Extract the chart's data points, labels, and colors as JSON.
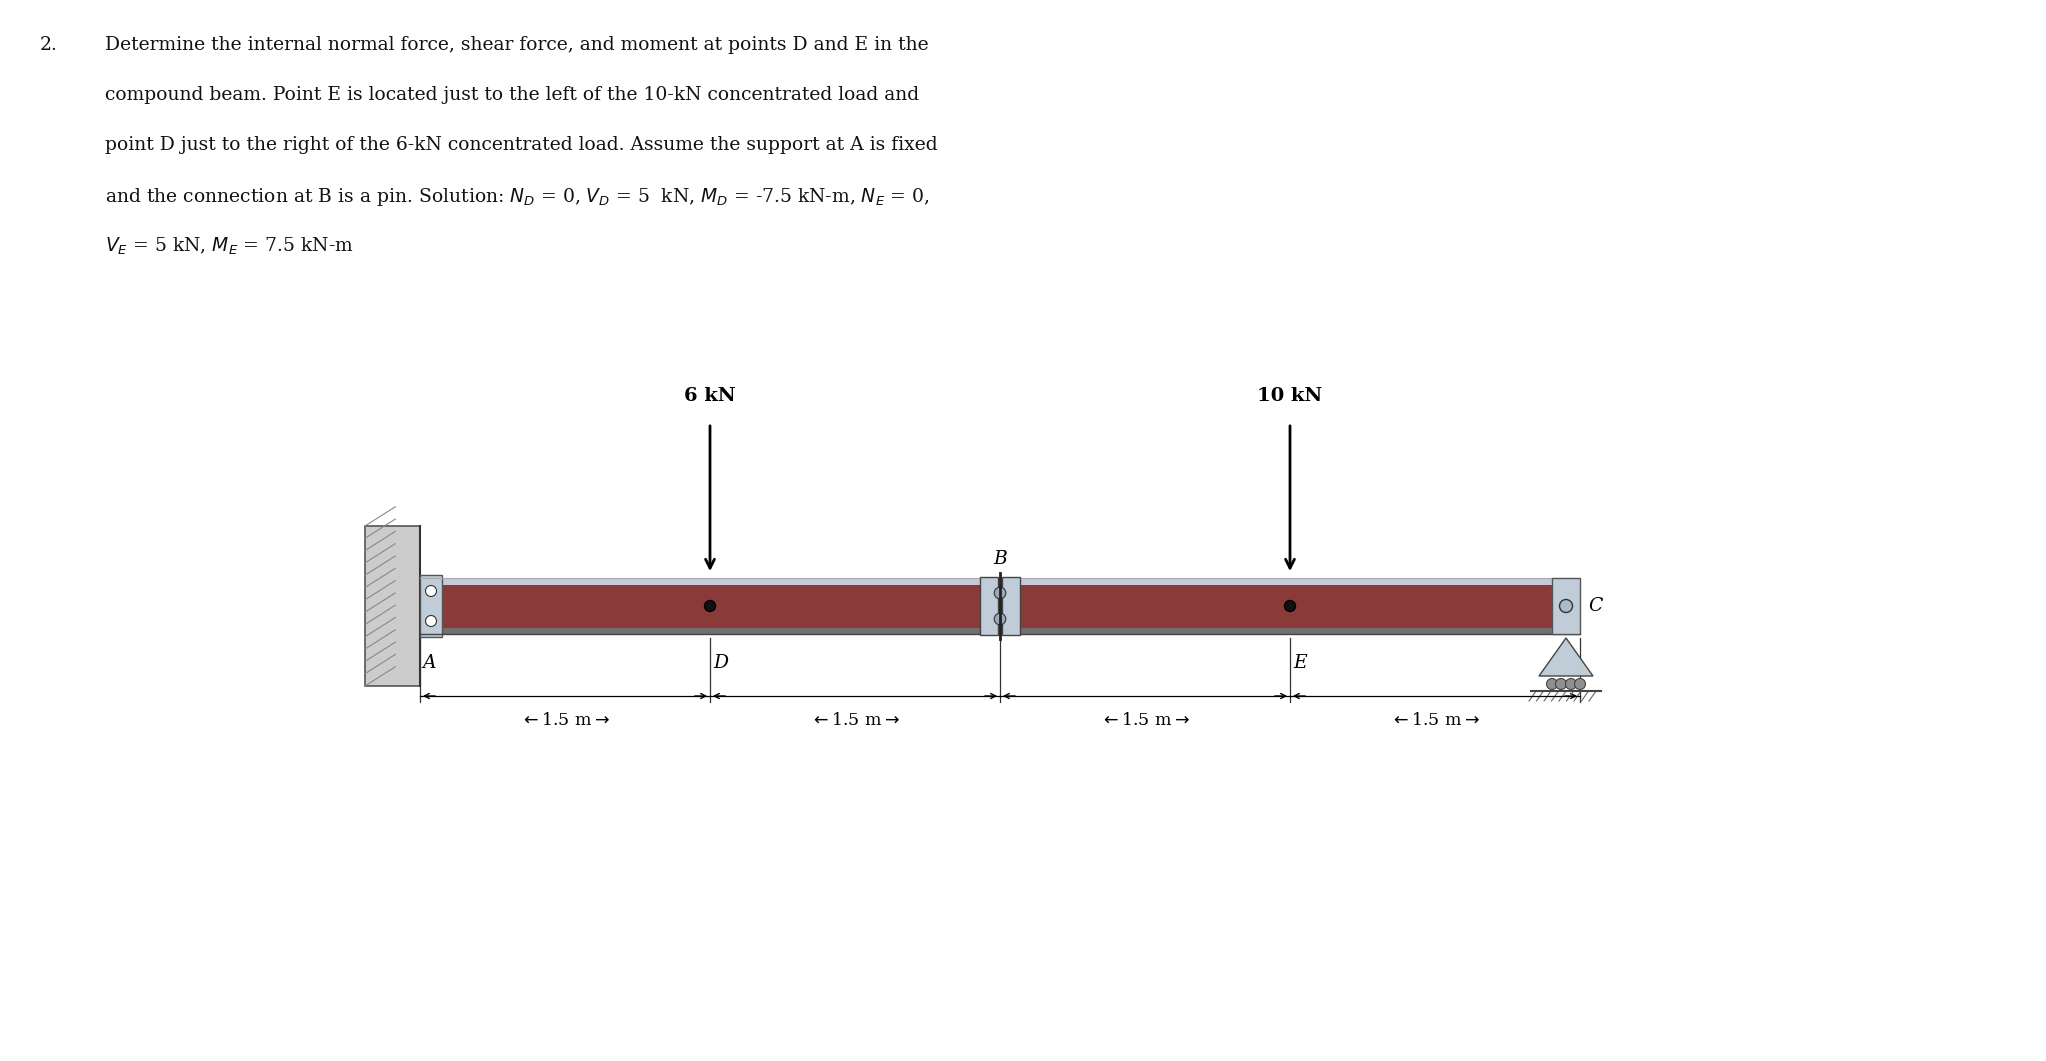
{
  "load1_label": "6 kN",
  "load2_label": "10 kN",
  "label_A": "A",
  "label_B": "B",
  "label_C": "C",
  "label_D": "D",
  "label_E": "E",
  "beam_color": "#8B3A3A",
  "beam_edge_color": "#5a1a1a",
  "beam_strip_color": "#b0b0b8",
  "beam_bot_strip_color": "#888888",
  "wall_color": "#aaaaaa",
  "wall_edge_color": "#555555",
  "bg_color": "#ffffff",
  "text_color": "#111111",
  "bracket_color": "#c0ccd8",
  "roller_color": "#b0c4de",
  "figsize": [
    20.46,
    10.61
  ],
  "dpi": 100
}
